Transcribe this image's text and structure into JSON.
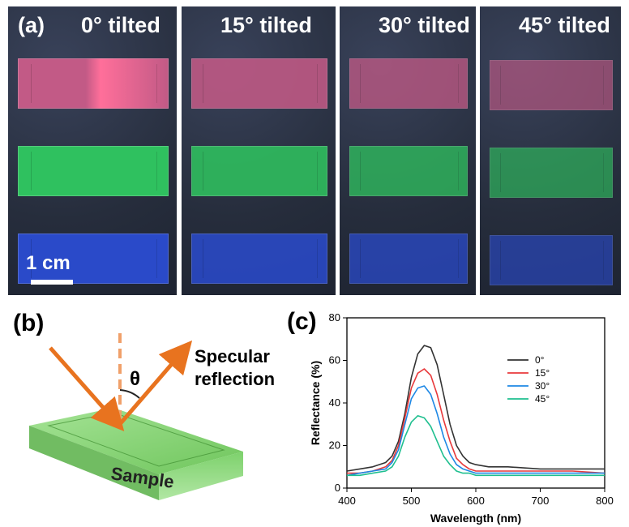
{
  "panel_a": {
    "label": "(a)",
    "tilts": [
      "0° tilted",
      "15° tilted",
      "30° tilted",
      "45° tilted"
    ],
    "scale_bar": "1 cm",
    "strip_colors": {
      "red": "#c25a86",
      "green": "#2fc15f",
      "blue": "#2a4ac9"
    }
  },
  "panel_b": {
    "label": "(b)",
    "angle_symbol": "θ",
    "reflection_line1": "Specular",
    "reflection_line2": "reflection",
    "sample_label": "Sample",
    "ray_color": "#e8731f",
    "sample_color": "#7fd66b"
  },
  "panel_c": {
    "label": "(c)"
  },
  "chart_data": {
    "type": "line",
    "xlabel": "Wavelength (nm)",
    "ylabel": "Reflectance (%)",
    "xlim": [
      400,
      800
    ],
    "ylim": [
      0,
      80
    ],
    "xticks": [
      400,
      500,
      600,
      700,
      800
    ],
    "yticks": [
      0,
      20,
      40,
      60,
      80
    ],
    "legend_position": "right",
    "series": [
      {
        "name": "0°",
        "color": "#333333",
        "x": [
          400,
          420,
          440,
          460,
          470,
          480,
          490,
          500,
          510,
          520,
          530,
          540,
          550,
          560,
          570,
          580,
          590,
          600,
          620,
          650,
          700,
          750,
          800
        ],
        "y": [
          8,
          9,
          10,
          12,
          15,
          22,
          35,
          52,
          63,
          67,
          66,
          58,
          44,
          30,
          20,
          15,
          12,
          11,
          10,
          10,
          9,
          9,
          9
        ]
      },
      {
        "name": "15°",
        "color": "#e8393b",
        "x": [
          400,
          420,
          440,
          460,
          470,
          480,
          490,
          500,
          510,
          520,
          530,
          540,
          550,
          560,
          570,
          580,
          590,
          600,
          620,
          650,
          700,
          750,
          800
        ],
        "y": [
          7,
          7,
          8,
          10,
          13,
          20,
          33,
          47,
          54,
          56,
          53,
          44,
          32,
          22,
          14,
          11,
          9,
          8,
          8,
          8,
          8,
          8,
          7
        ]
      },
      {
        "name": "30°",
        "color": "#1e88e5",
        "x": [
          400,
          420,
          440,
          460,
          470,
          480,
          490,
          500,
          510,
          520,
          530,
          540,
          550,
          560,
          570,
          580,
          590,
          600,
          620,
          650,
          700,
          750,
          800
        ],
        "y": [
          6,
          7,
          8,
          9,
          12,
          18,
          30,
          42,
          47,
          48,
          44,
          35,
          24,
          16,
          11,
          9,
          8,
          7,
          7,
          7,
          7,
          7,
          7
        ]
      },
      {
        "name": "45°",
        "color": "#1fbf8f",
        "x": [
          400,
          420,
          440,
          460,
          470,
          480,
          490,
          500,
          510,
          520,
          530,
          540,
          550,
          560,
          570,
          580,
          590,
          600,
          620,
          650,
          700,
          750,
          800
        ],
        "y": [
          6,
          6,
          7,
          8,
          10,
          15,
          24,
          31,
          34,
          33,
          29,
          22,
          15,
          11,
          8,
          7,
          7,
          6,
          6,
          6,
          6,
          6,
          6
        ]
      }
    ]
  }
}
